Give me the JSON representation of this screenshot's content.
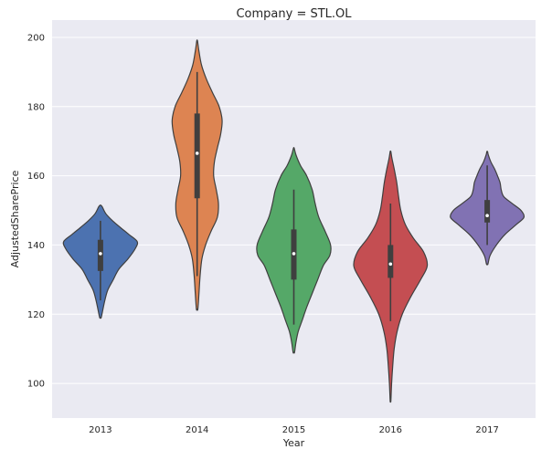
{
  "chart_data": {
    "type": "violin",
    "title": "Company = STL.OL",
    "xlabel": "Year",
    "ylabel": "AdjustedSharePrice",
    "ylim": [
      90,
      205
    ],
    "yticks": [
      100,
      120,
      140,
      160,
      180,
      200
    ],
    "grid": true,
    "categories": [
      "2013",
      "2014",
      "2015",
      "2016",
      "2017"
    ],
    "series": [
      {
        "category": "2013",
        "color": "#4c72b0",
        "min": 119,
        "max": 151.5,
        "q1": 132.5,
        "median": 137.5,
        "q3": 141.5,
        "whisker_low": 124,
        "whisker_high": 147,
        "profile": [
          [
            119,
            0.02
          ],
          [
            121,
            0.06
          ],
          [
            124,
            0.12
          ],
          [
            127,
            0.2
          ],
          [
            130,
            0.35
          ],
          [
            133,
            0.5
          ],
          [
            136,
            0.75
          ],
          [
            139,
            0.95
          ],
          [
            141,
            1.0
          ],
          [
            143,
            0.78
          ],
          [
            145,
            0.55
          ],
          [
            147,
            0.33
          ],
          [
            149,
            0.15
          ],
          [
            151,
            0.05
          ],
          [
            151.5,
            0.01
          ]
        ]
      },
      {
        "category": "2014",
        "color": "#dd8452",
        "min": 121.5,
        "max": 199,
        "q1": 153.5,
        "median": 166.5,
        "q3": 178,
        "whisker_low": 131,
        "whisker_high": 190,
        "profile": [
          [
            121.5,
            0.02
          ],
          [
            126,
            0.05
          ],
          [
            131,
            0.08
          ],
          [
            136,
            0.13
          ],
          [
            140,
            0.23
          ],
          [
            144,
            0.38
          ],
          [
            148,
            0.55
          ],
          [
            152,
            0.58
          ],
          [
            156,
            0.52
          ],
          [
            160,
            0.45
          ],
          [
            164,
            0.47
          ],
          [
            168,
            0.55
          ],
          [
            172,
            0.64
          ],
          [
            176,
            0.68
          ],
          [
            180,
            0.6
          ],
          [
            184,
            0.42
          ],
          [
            188,
            0.25
          ],
          [
            192,
            0.12
          ],
          [
            196,
            0.05
          ],
          [
            199,
            0.01
          ]
        ]
      },
      {
        "category": "2015",
        "color": "#55a868",
        "min": 109,
        "max": 168,
        "q1": 130,
        "median": 137.5,
        "q3": 144.5,
        "whisker_low": 117,
        "whisker_high": 156,
        "profile": [
          [
            109,
            0.02
          ],
          [
            112,
            0.06
          ],
          [
            115,
            0.12
          ],
          [
            118,
            0.22
          ],
          [
            122,
            0.35
          ],
          [
            126,
            0.5
          ],
          [
            130,
            0.65
          ],
          [
            134,
            0.8
          ],
          [
            137,
            0.98
          ],
          [
            140,
            1.0
          ],
          [
            144,
            0.85
          ],
          [
            148,
            0.68
          ],
          [
            152,
            0.58
          ],
          [
            156,
            0.5
          ],
          [
            160,
            0.35
          ],
          [
            163,
            0.18
          ],
          [
            166,
            0.06
          ],
          [
            168,
            0.01
          ]
        ]
      },
      {
        "category": "2016",
        "color": "#c44e52",
        "min": 95,
        "max": 167,
        "q1": 130.5,
        "median": 134.5,
        "q3": 140,
        "whisker_low": 118,
        "whisker_high": 152,
        "profile": [
          [
            95,
            0.01
          ],
          [
            100,
            0.03
          ],
          [
            105,
            0.06
          ],
          [
            110,
            0.1
          ],
          [
            115,
            0.18
          ],
          [
            120,
            0.32
          ],
          [
            125,
            0.55
          ],
          [
            130,
            0.82
          ],
          [
            134,
            1.0
          ],
          [
            138,
            0.9
          ],
          [
            142,
            0.62
          ],
          [
            146,
            0.4
          ],
          [
            150,
            0.28
          ],
          [
            154,
            0.22
          ],
          [
            158,
            0.17
          ],
          [
            162,
            0.1
          ],
          [
            165,
            0.04
          ],
          [
            167,
            0.01
          ]
        ]
      },
      {
        "category": "2017",
        "color": "#8172b3",
        "min": 134.5,
        "max": 167,
        "q1": 146.5,
        "median": 148.5,
        "q3": 153,
        "whisker_low": 140,
        "whisker_high": 163,
        "profile": [
          [
            134.5,
            0.02
          ],
          [
            137,
            0.08
          ],
          [
            140,
            0.25
          ],
          [
            143,
            0.48
          ],
          [
            146,
            0.8
          ],
          [
            148,
            1.0
          ],
          [
            150,
            0.92
          ],
          [
            152,
            0.68
          ],
          [
            154,
            0.45
          ],
          [
            156,
            0.38
          ],
          [
            158,
            0.35
          ],
          [
            160,
            0.28
          ],
          [
            162,
            0.2
          ],
          [
            164,
            0.1
          ],
          [
            166,
            0.03
          ],
          [
            167,
            0.01
          ]
        ]
      }
    ]
  },
  "colors": {
    "plot_background": "#eaeaf2",
    "grid": "#ffffff",
    "violin_edge": "#3f3f3f",
    "box": "#3f3f3f",
    "median_dot": "#ffffff"
  }
}
